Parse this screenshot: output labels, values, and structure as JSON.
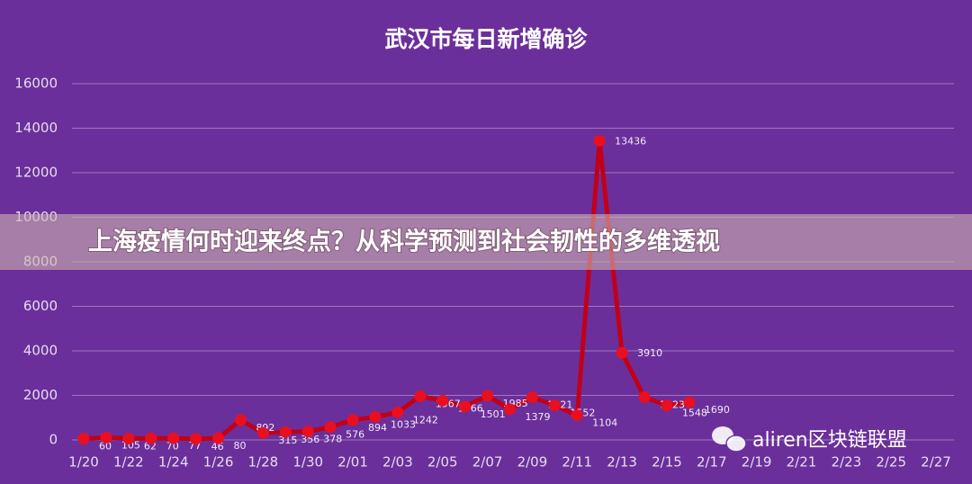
{
  "chart_data": {
    "type": "line",
    "title": "武汉市每日新增确诊",
    "categories": [
      "1/20",
      null,
      "1/22",
      null,
      "1/24",
      null,
      "1/26",
      null,
      "1/28",
      null,
      "1/30",
      null,
      "2/01",
      null,
      "2/03",
      null,
      "2/05",
      null,
      "2/07",
      null,
      "2/09",
      null,
      "2/11",
      null,
      "2/13",
      null,
      "2/15",
      null,
      "2/17",
      null,
      "2/19",
      null,
      "2/21",
      null,
      "2/23",
      null,
      "2/25",
      null,
      "2/27"
    ],
    "series": [
      {
        "name": null,
        "color": "#c00018",
        "values": [
          60,
          105,
          62,
          70,
          77,
          46,
          80,
          892,
          315,
          356,
          378,
          576,
          894,
          1033,
          1242,
          1967,
          1766,
          1501,
          1985,
          1379,
          1921,
          1552,
          1104,
          13436,
          3910,
          1923,
          1548,
          1690,
          null,
          null,
          null,
          null,
          null,
          null,
          null,
          null,
          null,
          null,
          null
        ]
      }
    ],
    "ylim": [
      0,
      16000
    ],
    "yticks": [
      0,
      2000,
      4000,
      6000,
      8000,
      10000,
      12000,
      14000,
      16000
    ],
    "grid": true
  },
  "banner": "上海疫情何时迎来终点？从科学预测到社会韧性的多维透视",
  "watermark": "aliren区块链联盟"
}
